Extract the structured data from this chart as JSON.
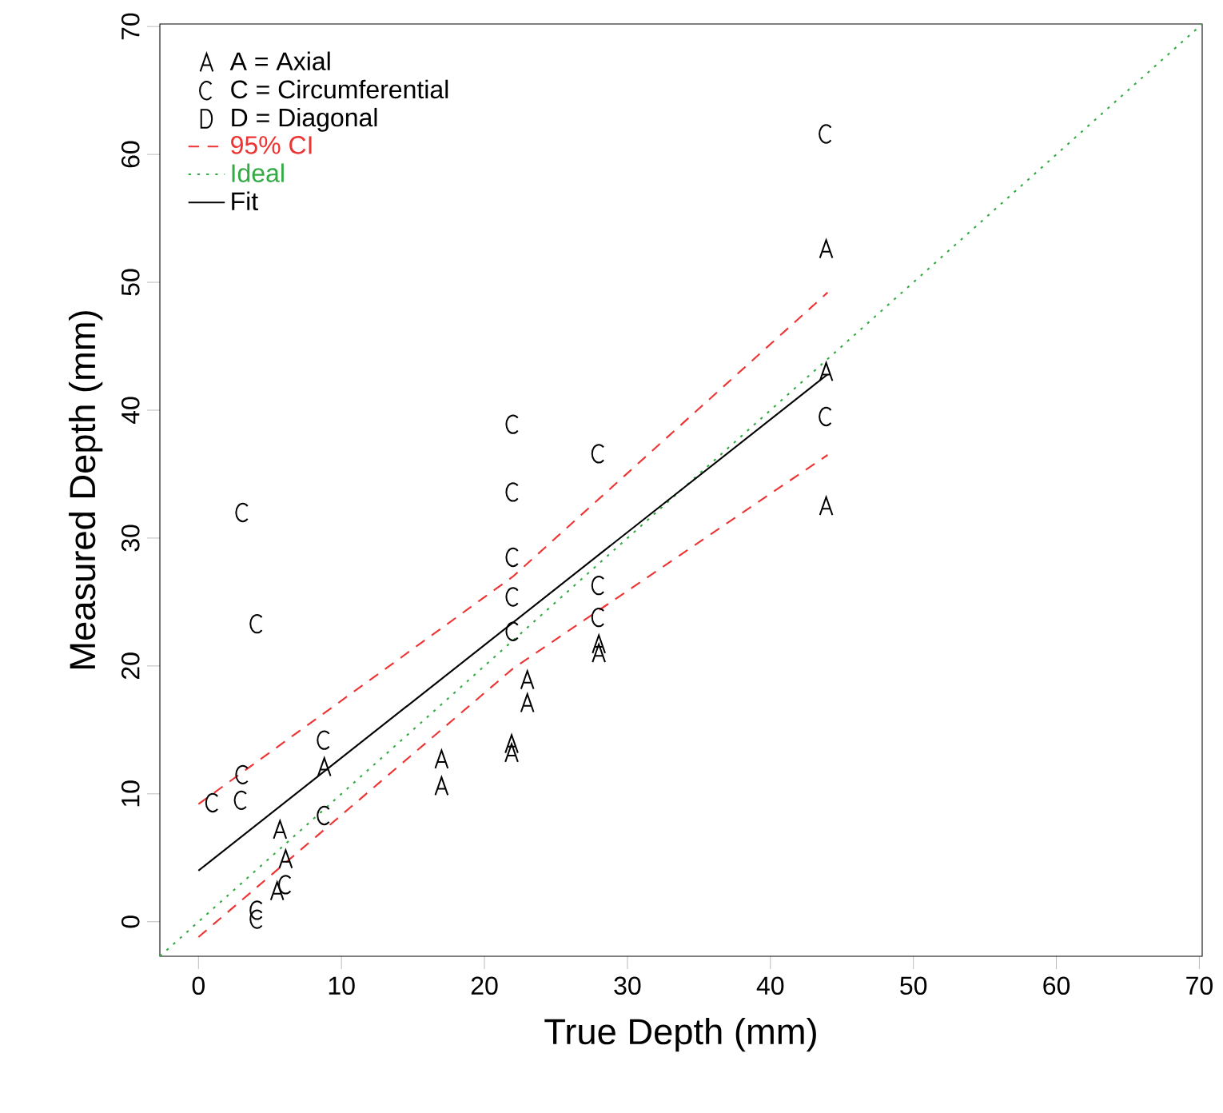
{
  "chart_data": {
    "type": "scatter",
    "xlabel": "True Depth (mm)",
    "ylabel": "Measured Depth (mm)",
    "xlim": [
      -2.7,
      70.2
    ],
    "ylim": [
      -2.7,
      70.2
    ],
    "xticks": [
      0,
      10,
      20,
      30,
      40,
      50,
      60,
      70
    ],
    "yticks": [
      0,
      10,
      20,
      30,
      40,
      50,
      60,
      70
    ],
    "legend": "top left",
    "series": [
      {
        "name": "A = Axial",
        "color": "#000000",
        "x": [
          5.7,
          6.1,
          5.5,
          8.8,
          17,
          17,
          21.9,
          21.9,
          23,
          23,
          28,
          28,
          43.9,
          43.9,
          43.9
        ],
        "values": [
          7.2,
          4.9,
          2.4,
          12.1,
          12.7,
          10.6,
          13.9,
          13.2,
          18.9,
          17.1,
          21.7,
          21.0,
          52.6,
          43.0,
          32.5
        ]
      },
      {
        "name": "C = Circumferential",
        "color": "#000000",
        "x": [
          1.0,
          3.1,
          3.0,
          3.1,
          4.1,
          4.1,
          4.1,
          6.1,
          8.8,
          8.8,
          22,
          22,
          22,
          22,
          22,
          28,
          28,
          28,
          43.9,
          43.9
        ],
        "values": [
          9.3,
          11.5,
          9.5,
          32,
          23.3,
          0.9,
          0.2,
          2.9,
          14.2,
          8.3,
          38.9,
          33.6,
          28.5,
          25.4,
          22.7,
          36.6,
          26.3,
          23.8,
          61.6,
          39.5
        ]
      },
      {
        "name": "D = Diagonal",
        "color": "#000000"
      },
      {
        "name": "95% CI",
        "type": "line",
        "line_style": "dashed",
        "color": "#ee3333",
        "x": [
          0,
          22,
          44
        ],
        "values": [
          9.2,
          27.0,
          49.2
        ]
      },
      {
        "type": "line",
        "line_style": "dashed",
        "color": "#ee3333",
        "x": [
          0,
          22,
          44
        ],
        "values": [
          -1.2,
          19.8,
          36.5
        ]
      },
      {
        "name": "Ideal",
        "type": "line",
        "line_style": "dotted",
        "color": "#33aa44",
        "x": [
          -2.7,
          70.2
        ],
        "values": [
          -2.7,
          70.2
        ]
      },
      {
        "name": "Fit",
        "type": "line",
        "line_style": "solid",
        "color": "#000000",
        "x": [
          0,
          44
        ],
        "values": [
          4.0,
          42.8
        ]
      }
    ]
  }
}
